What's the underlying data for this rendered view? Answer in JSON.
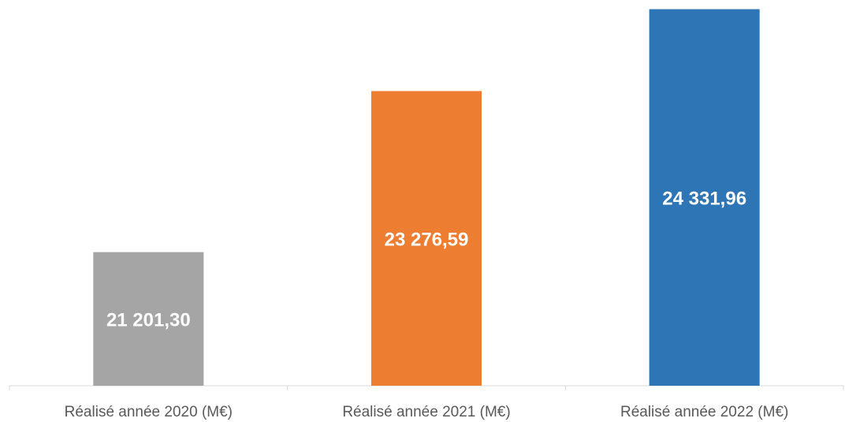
{
  "chart_data": {
    "type": "bar",
    "categories": [
      "Réalisé année 2020 (M€)",
      "Réalisé année 2021 (M€)",
      "Réalisé année 2022 (M€)"
    ],
    "values": [
      21201.3,
      23276.59,
      24331.96
    ],
    "value_labels": [
      "21 201,30",
      "23 276,59",
      "24 331,96"
    ],
    "colors": [
      "#a5a5a5",
      "#ed7d31",
      "#2e75b6"
    ],
    "ylim": [
      19480,
      24450
    ]
  }
}
